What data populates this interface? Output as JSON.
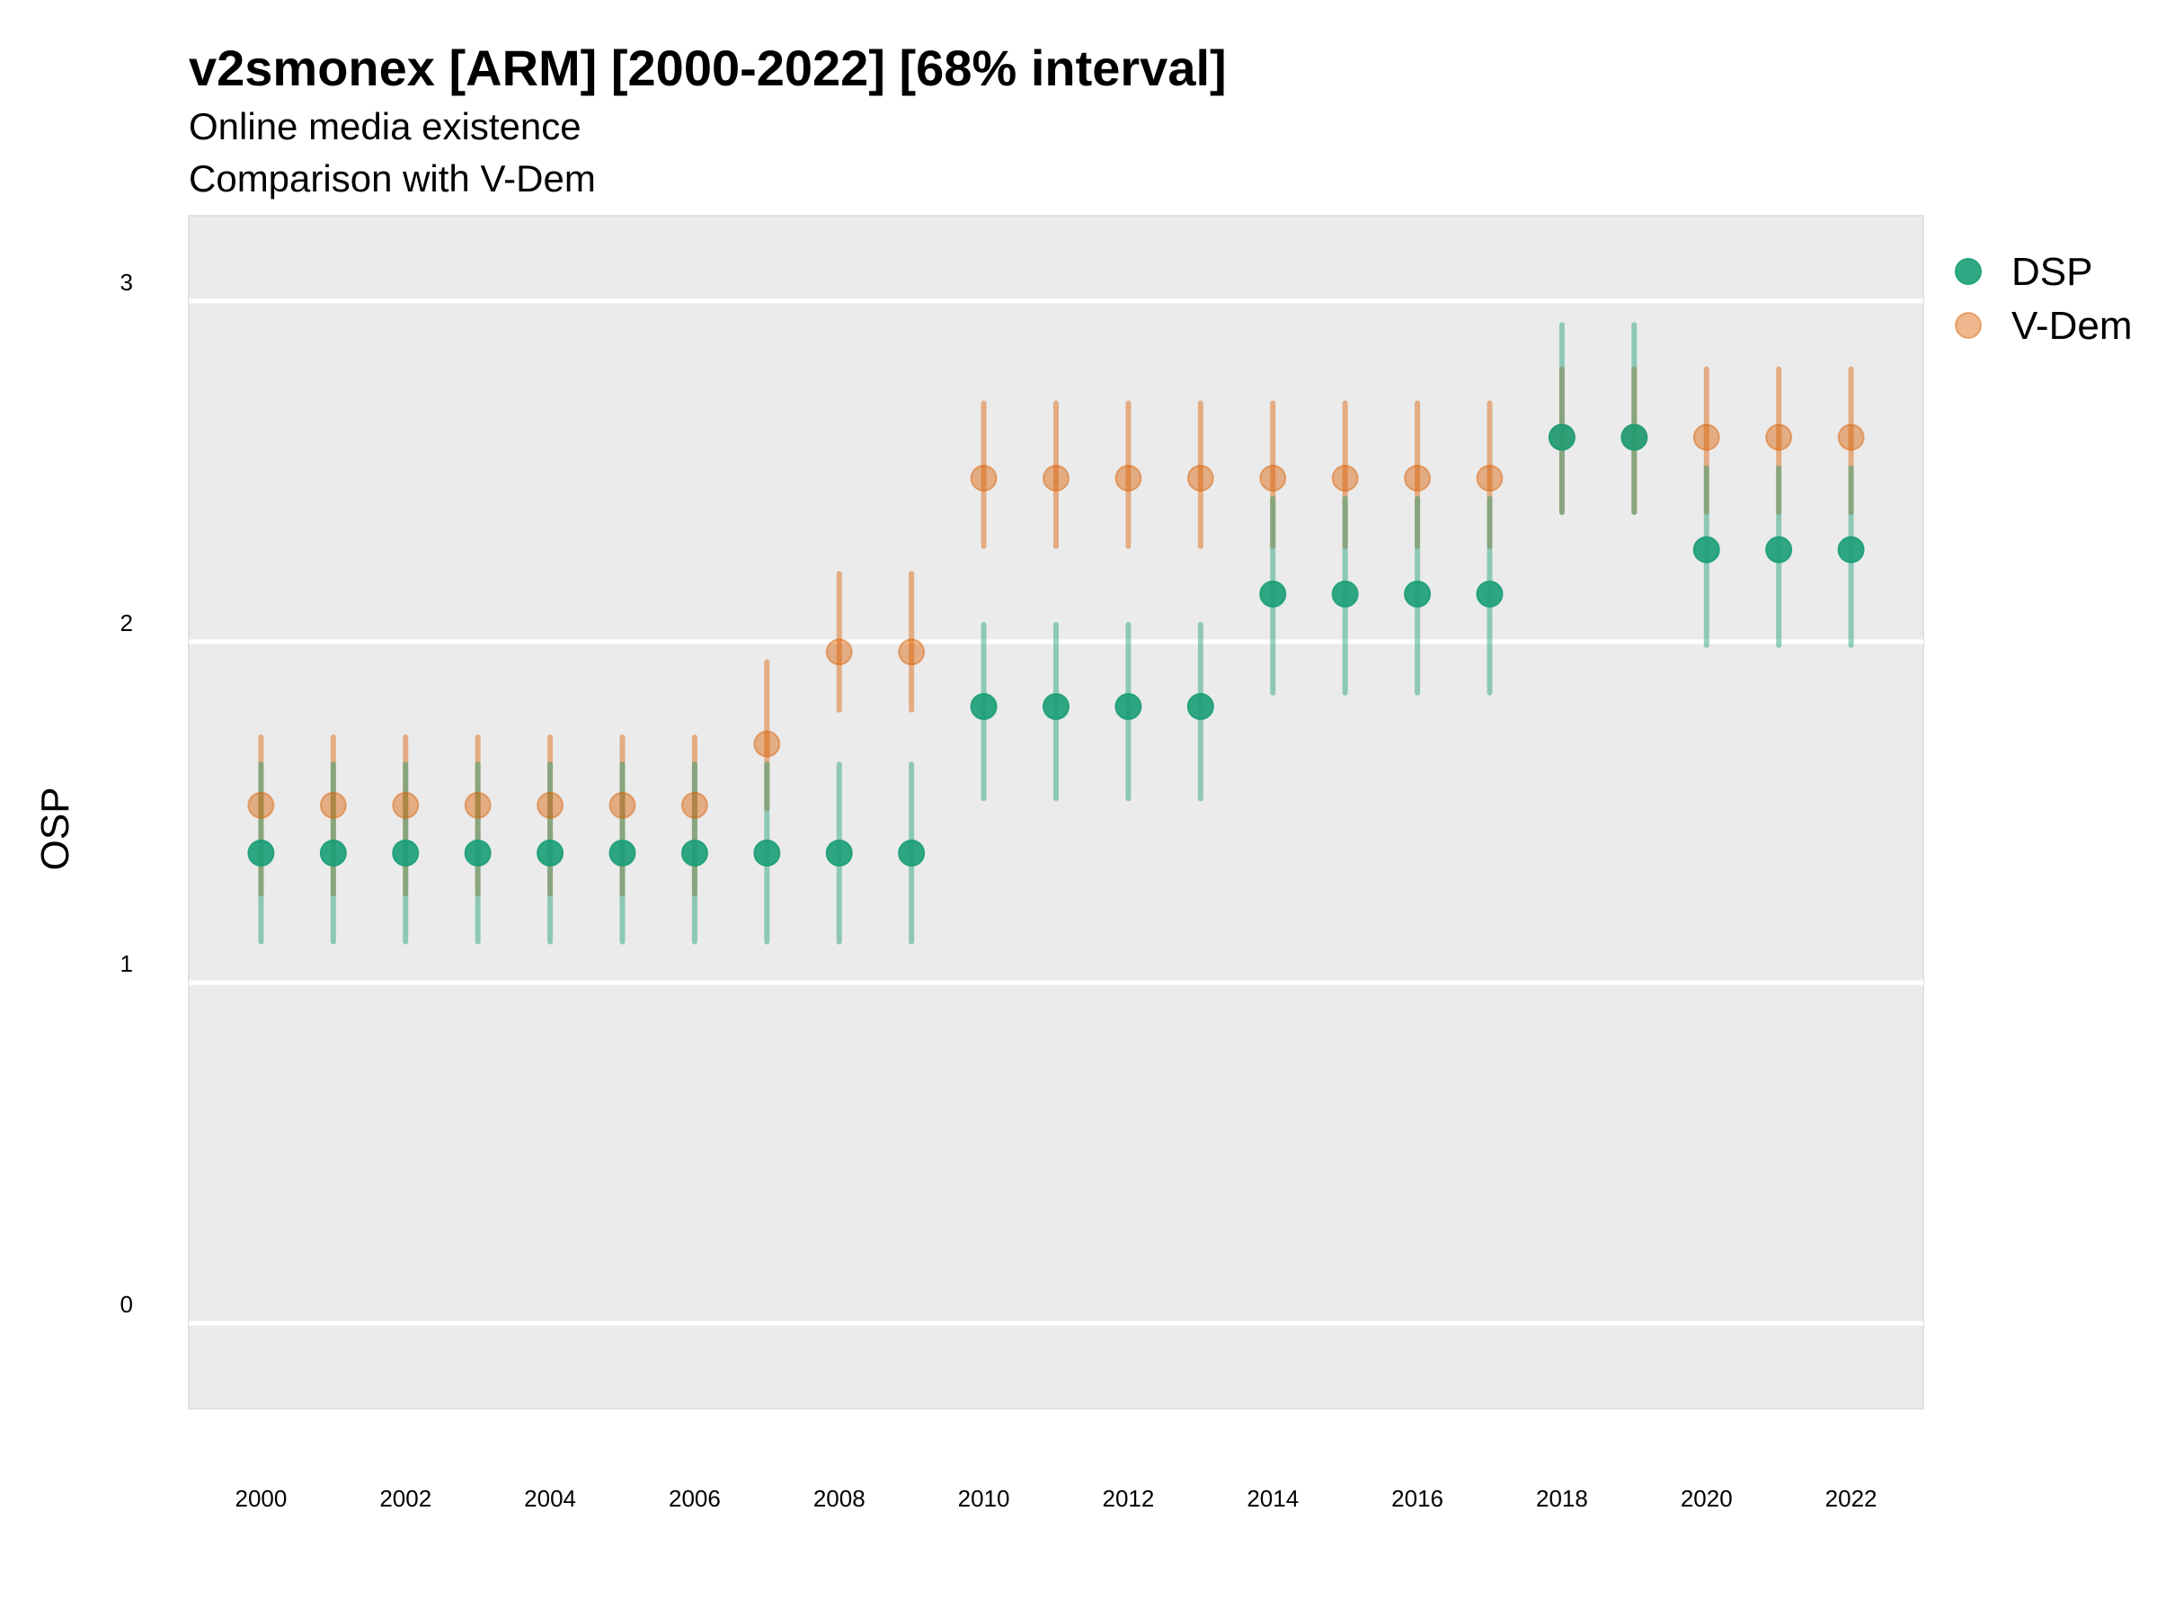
{
  "chart_data": {
    "type": "scatter",
    "title": "v2smonex [ARM] [2000-2022] [68% interval]",
    "subtitle_lines": [
      "Online media existence",
      "Comparison with V-Dem"
    ],
    "xlabel": "",
    "ylabel": "OSP",
    "xlim": [
      1999,
      2023
    ],
    "ylim": [
      -0.25,
      3.25
    ],
    "y_ticks": [
      0,
      1,
      2,
      3
    ],
    "x_ticks": [
      2000,
      2002,
      2004,
      2006,
      2008,
      2010,
      2012,
      2014,
      2016,
      2018,
      2020,
      2022
    ],
    "grid": true,
    "legend_position": "top-right",
    "x": [
      2000,
      2001,
      2002,
      2003,
      2004,
      2005,
      2006,
      2007,
      2008,
      2009,
      2010,
      2011,
      2012,
      2013,
      2014,
      2015,
      2016,
      2017,
      2018,
      2019,
      2020,
      2021,
      2022
    ],
    "series": [
      {
        "name": "DSP",
        "color": "#1b9e77",
        "values": [
          1.38,
          1.38,
          1.38,
          1.38,
          1.38,
          1.38,
          1.38,
          1.38,
          1.38,
          1.38,
          1.81,
          1.81,
          1.81,
          1.81,
          2.14,
          2.14,
          2.14,
          2.14,
          2.6,
          2.6,
          2.27,
          2.27,
          2.27
        ],
        "lower": [
          1.12,
          1.12,
          1.12,
          1.12,
          1.12,
          1.12,
          1.12,
          1.12,
          1.12,
          1.12,
          1.54,
          1.54,
          1.54,
          1.54,
          1.85,
          1.85,
          1.85,
          1.85,
          2.38,
          2.38,
          1.99,
          1.99,
          1.99
        ],
        "upper": [
          1.64,
          1.64,
          1.64,
          1.64,
          1.64,
          1.64,
          1.64,
          1.64,
          1.64,
          1.64,
          2.05,
          2.05,
          2.05,
          2.05,
          2.42,
          2.42,
          2.42,
          2.42,
          2.93,
          2.93,
          2.51,
          2.51,
          2.51
        ]
      },
      {
        "name": "V-Dem",
        "color": "#d95f02",
        "values": [
          1.52,
          1.52,
          1.52,
          1.52,
          1.52,
          1.52,
          1.52,
          1.7,
          1.97,
          1.97,
          2.48,
          2.48,
          2.48,
          2.48,
          2.48,
          2.48,
          2.48,
          2.48,
          2.6,
          2.6,
          2.6,
          2.6,
          2.6
        ],
        "lower": [
          1.26,
          1.26,
          1.26,
          1.26,
          1.26,
          1.26,
          1.26,
          1.51,
          1.8,
          1.8,
          2.28,
          2.28,
          2.28,
          2.28,
          2.28,
          2.28,
          2.28,
          2.28,
          2.38,
          2.38,
          2.38,
          2.38,
          2.38
        ],
        "upper": [
          1.72,
          1.72,
          1.72,
          1.72,
          1.72,
          1.72,
          1.72,
          1.94,
          2.2,
          2.2,
          2.7,
          2.7,
          2.7,
          2.7,
          2.7,
          2.7,
          2.7,
          2.7,
          2.8,
          2.8,
          2.8,
          2.8,
          2.8
        ]
      }
    ]
  }
}
